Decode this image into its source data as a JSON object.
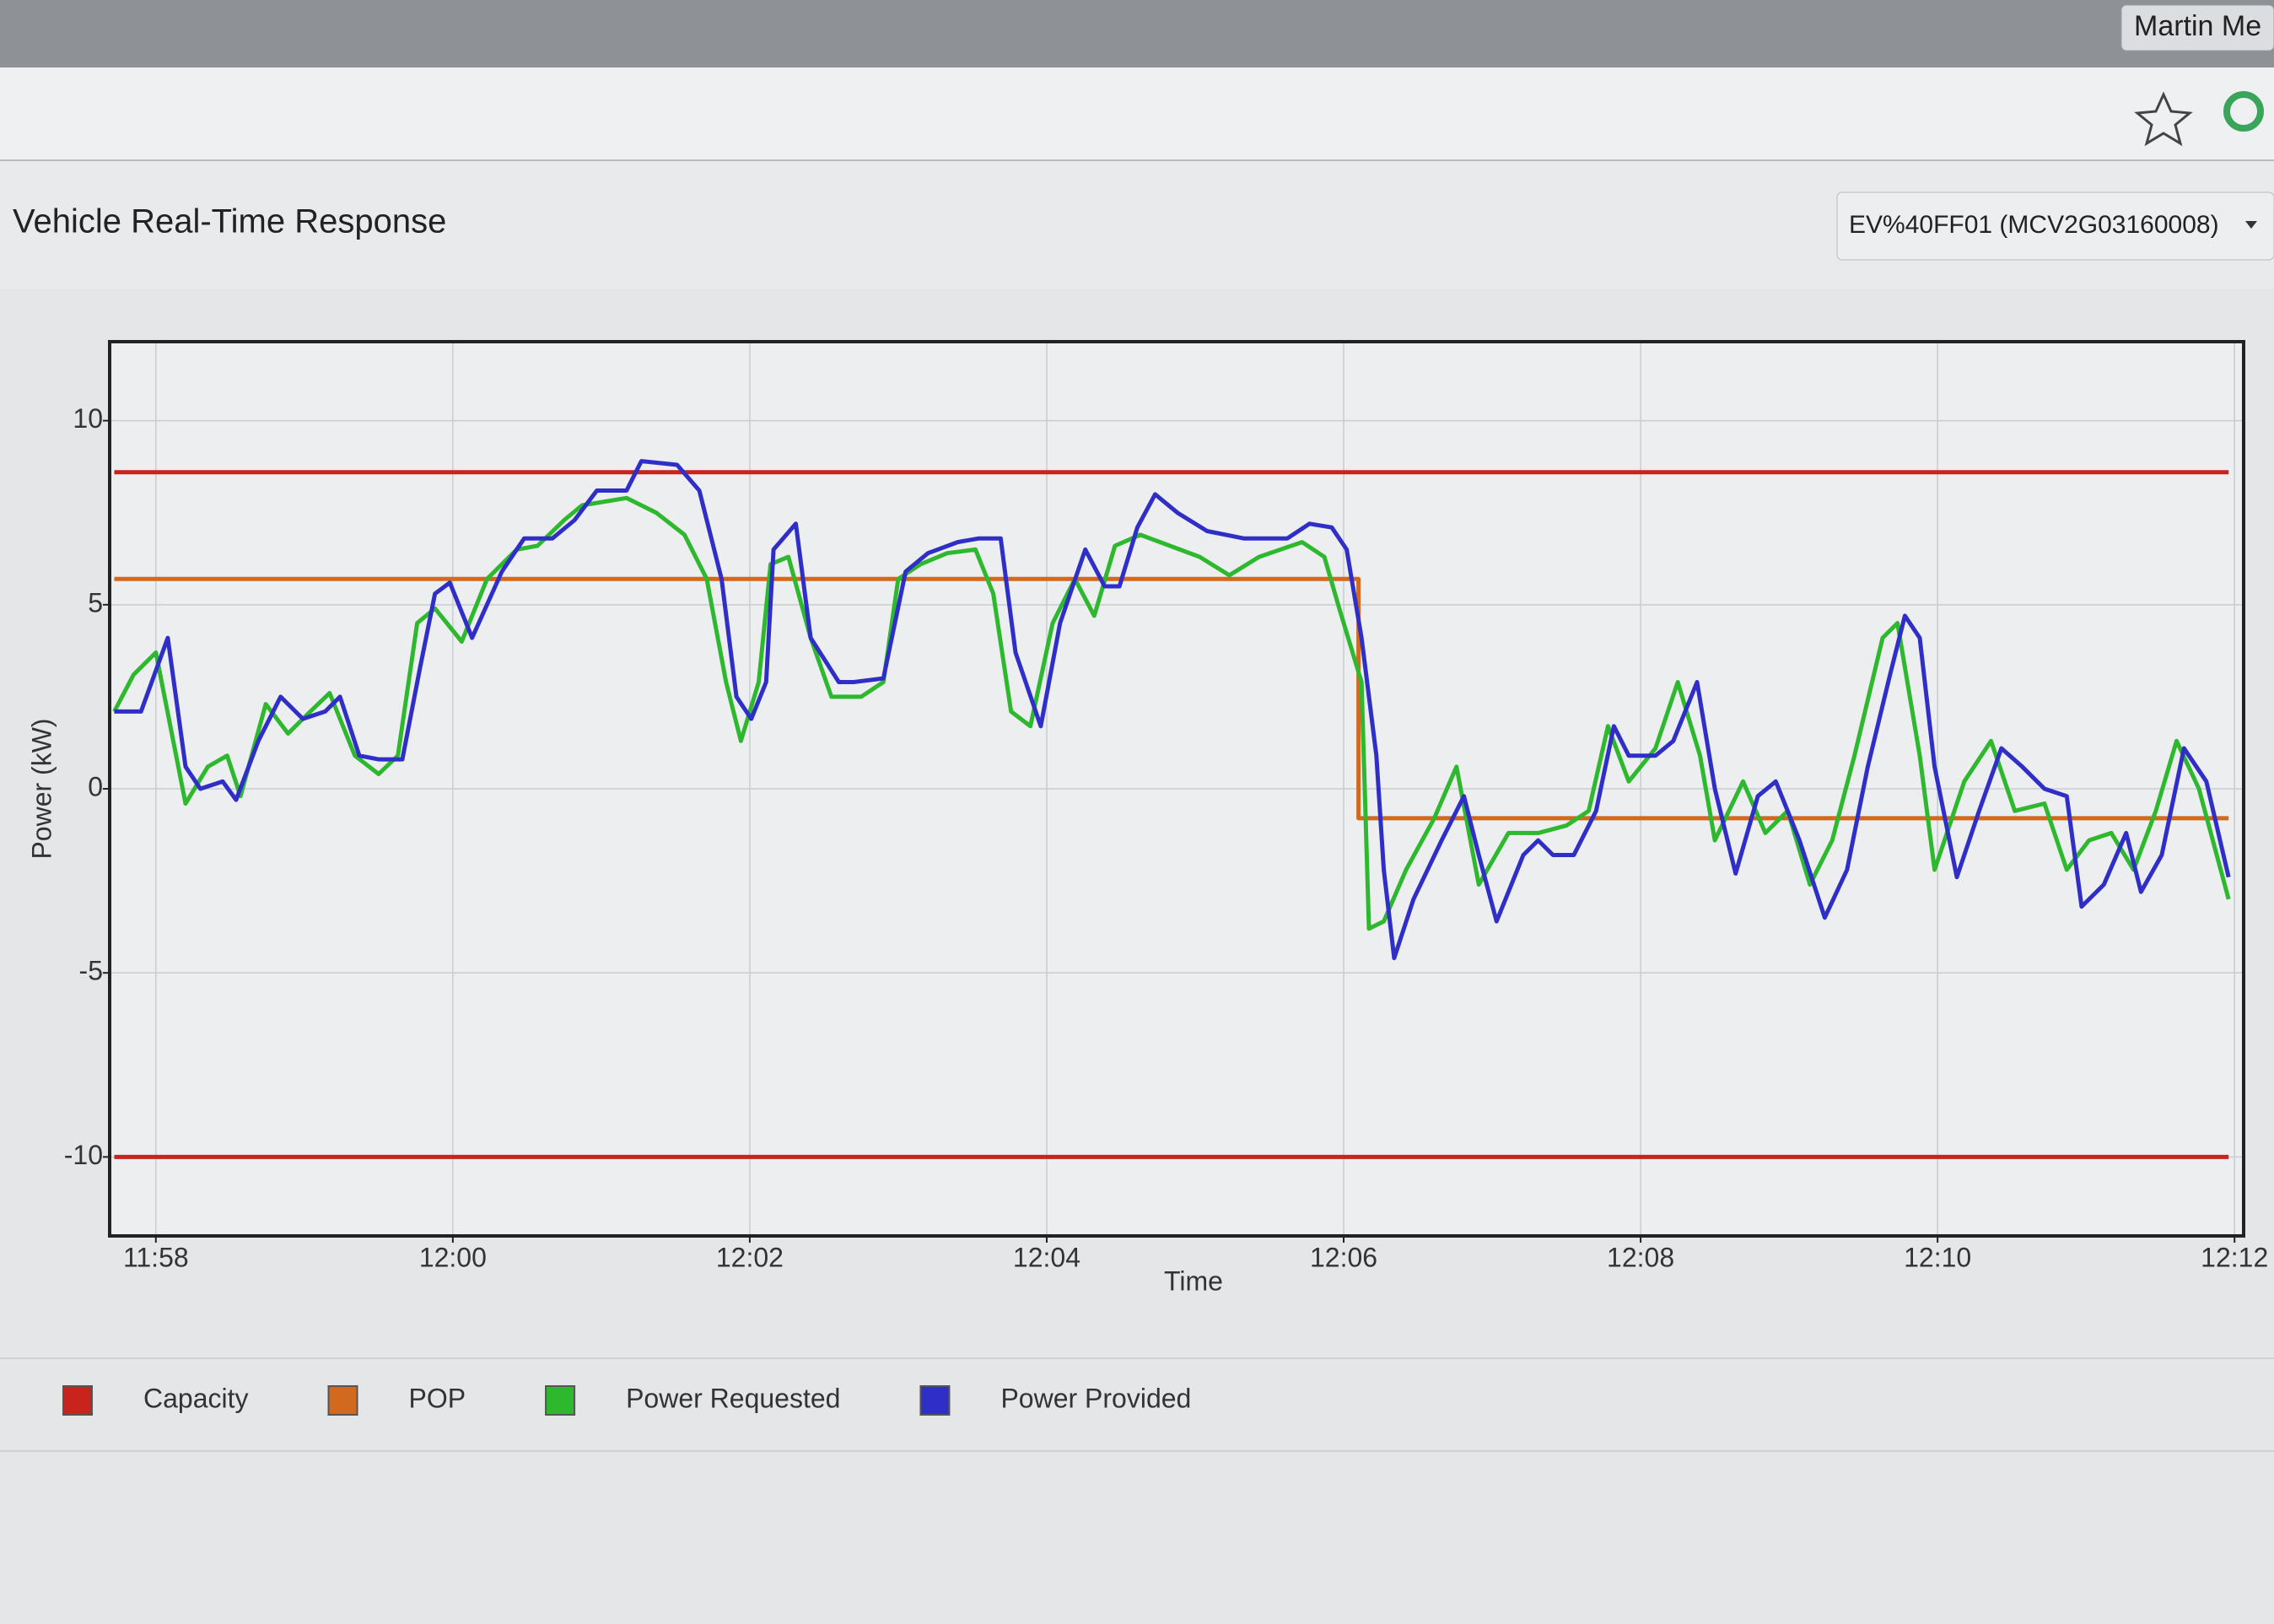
{
  "browser": {
    "user": "Martin Me"
  },
  "header": {
    "title": "Vehicle Real-Time Response",
    "vehicle_select": "EV%40FF01 (MCV2G03160008)"
  },
  "chart_data": {
    "type": "line",
    "xlabel": "Time",
    "ylabel": "Power (kW)",
    "xlim": [
      717.7,
      732.05
    ],
    "ylim": [
      -12.1,
      12.1
    ],
    "xticks": [
      {
        "value": 718,
        "label": "11:58"
      },
      {
        "value": 720,
        "label": "12:00"
      },
      {
        "value": 722,
        "label": "12:02"
      },
      {
        "value": 724,
        "label": "12:04"
      },
      {
        "value": 726,
        "label": "12:06"
      },
      {
        "value": 728,
        "label": "12:08"
      },
      {
        "value": 730,
        "label": "12:10"
      },
      {
        "value": 732,
        "label": "12:12"
      }
    ],
    "yticks": [
      -10,
      -5,
      0,
      5,
      10
    ],
    "grid": true,
    "legend": "bottom",
    "series": [
      {
        "name": "Capacity",
        "color": "#c8241c",
        "x": [
          717.72,
          731.96,
          731.96,
          717.72,
          731.96
        ],
        "values": [
          8.6,
          8.6,
          null,
          -10,
          -10
        ]
      },
      {
        "name": "POP",
        "color": "#d2691e",
        "x": [
          717.72,
          726.1,
          726.1,
          731.96
        ],
        "values": [
          5.7,
          5.7,
          -0.8,
          -0.8
        ]
      },
      {
        "name": "Power Requested",
        "color": "#2eb82e",
        "x": [
          717.72,
          717.85,
          718.0,
          718.2,
          718.35,
          718.48,
          718.57,
          718.74,
          718.89,
          719.04,
          719.17,
          719.34,
          719.5,
          719.63,
          719.76,
          719.88,
          720.06,
          720.23,
          720.43,
          720.57,
          720.75,
          720.87,
          721.17,
          721.37,
          721.56,
          721.71,
          721.84,
          721.94,
          722.06,
          722.14,
          722.26,
          722.41,
          722.55,
          722.75,
          722.9,
          723.0,
          723.15,
          723.33,
          723.52,
          723.64,
          723.76,
          723.89,
          724.04,
          724.19,
          724.32,
          724.46,
          724.63,
          724.83,
          725.03,
          725.23,
          725.43,
          725.72,
          725.87,
          725.97,
          726.12,
          726.17,
          726.27,
          726.42,
          726.61,
          726.76,
          726.91,
          727.11,
          727.31,
          727.5,
          727.65,
          727.78,
          727.92,
          728.1,
          728.25,
          728.4,
          728.5,
          728.69,
          728.84,
          728.99,
          729.14,
          729.29,
          729.44,
          729.63,
          729.73,
          729.88,
          729.98,
          730.18,
          730.36,
          730.52,
          730.72,
          730.87,
          731.02,
          731.17,
          731.32,
          731.47,
          731.61,
          731.76,
          731.96
        ],
        "values": [
          2.1,
          3.1,
          3.7,
          -0.4,
          0.6,
          0.9,
          -0.2,
          2.3,
          1.5,
          2.1,
          2.6,
          0.9,
          0.4,
          0.9,
          4.5,
          4.9,
          4.0,
          5.7,
          6.5,
          6.6,
          7.3,
          7.7,
          7.9,
          7.5,
          6.9,
          5.7,
          2.9,
          1.3,
          2.9,
          6.1,
          6.3,
          4.1,
          2.5,
          2.5,
          2.9,
          5.7,
          6.1,
          6.4,
          6.5,
          5.3,
          2.1,
          1.7,
          4.5,
          5.7,
          4.7,
          6.6,
          6.9,
          6.6,
          6.3,
          5.8,
          6.3,
          6.7,
          6.3,
          4.9,
          2.9,
          -3.8,
          -3.6,
          -2.2,
          -0.8,
          0.6,
          -2.6,
          -1.2,
          -1.2,
          -1.0,
          -0.6,
          1.7,
          0.2,
          1.1,
          2.9,
          0.9,
          -1.4,
          0.2,
          -1.2,
          -0.6,
          -2.6,
          -1.4,
          0.9,
          4.1,
          4.5,
          0.9,
          -2.2,
          0.2,
          1.3,
          -0.6,
          -0.4,
          -2.2,
          -1.4,
          -1.2,
          -2.2,
          -0.6,
          1.3,
          0,
          -3.0
        ]
      },
      {
        "name": "Power Provided",
        "color": "#2f2fc8",
        "x": [
          717.72,
          717.9,
          718.08,
          718.2,
          718.3,
          718.45,
          718.54,
          718.69,
          718.84,
          718.99,
          719.14,
          719.24,
          719.37,
          719.5,
          719.66,
          719.78,
          719.88,
          719.98,
          720.13,
          720.33,
          720.48,
          720.67,
          720.82,
          720.97,
          721.17,
          721.27,
          721.51,
          721.66,
          721.81,
          721.91,
          722.01,
          722.11,
          722.16,
          722.31,
          722.41,
          722.6,
          722.7,
          722.9,
          723.05,
          723.2,
          723.4,
          723.54,
          723.69,
          723.79,
          723.96,
          724.09,
          724.26,
          724.39,
          724.49,
          724.61,
          724.73,
          724.88,
          725.08,
          725.33,
          725.62,
          725.77,
          725.92,
          726.02,
          726.12,
          726.22,
          726.27,
          726.34,
          726.47,
          726.66,
          726.81,
          726.91,
          727.03,
          727.21,
          727.31,
          727.41,
          727.55,
          727.7,
          727.82,
          727.92,
          728.1,
          728.22,
          728.38,
          728.5,
          728.64,
          728.79,
          728.91,
          729.07,
          729.24,
          729.39,
          729.53,
          729.68,
          729.78,
          729.88,
          729.98,
          730.13,
          730.28,
          730.43,
          730.57,
          730.72,
          730.87,
          730.97,
          731.12,
          731.27,
          731.37,
          731.51,
          731.66,
          731.81,
          731.96
        ],
        "values": [
          2.1,
          2.1,
          4.1,
          0.6,
          0,
          0.2,
          -0.3,
          1.3,
          2.5,
          1.9,
          2.1,
          2.5,
          0.9,
          0.8,
          0.8,
          3.3,
          5.3,
          5.6,
          4.1,
          5.9,
          6.8,
          6.8,
          7.3,
          8.1,
          8.1,
          8.9,
          8.8,
          8.1,
          5.7,
          2.5,
          1.9,
          2.9,
          6.5,
          7.2,
          4.1,
          2.9,
          2.9,
          3.0,
          5.9,
          6.4,
          6.7,
          6.8,
          6.8,
          3.7,
          1.7,
          4.5,
          6.5,
          5.5,
          5.5,
          7.1,
          8.0,
          7.5,
          7.0,
          6.8,
          6.8,
          7.2,
          7.1,
          6.5,
          4.1,
          0.9,
          -2.2,
          -4.6,
          -3.0,
          -1.4,
          -0.2,
          -1.8,
          -3.6,
          -1.8,
          -1.4,
          -1.8,
          -1.8,
          -0.6,
          1.7,
          0.9,
          0.9,
          1.3,
          2.9,
          0,
          -2.3,
          -0.2,
          0.2,
          -1.4,
          -3.5,
          -2.2,
          0.6,
          3.1,
          4.7,
          4.1,
          0.6,
          -2.4,
          -0.6,
          1.1,
          0.6,
          0,
          -0.2,
          -3.2,
          -2.6,
          -1.2,
          -2.8,
          -1.8,
          1.1,
          0.2,
          -2.4
        ]
      }
    ]
  }
}
